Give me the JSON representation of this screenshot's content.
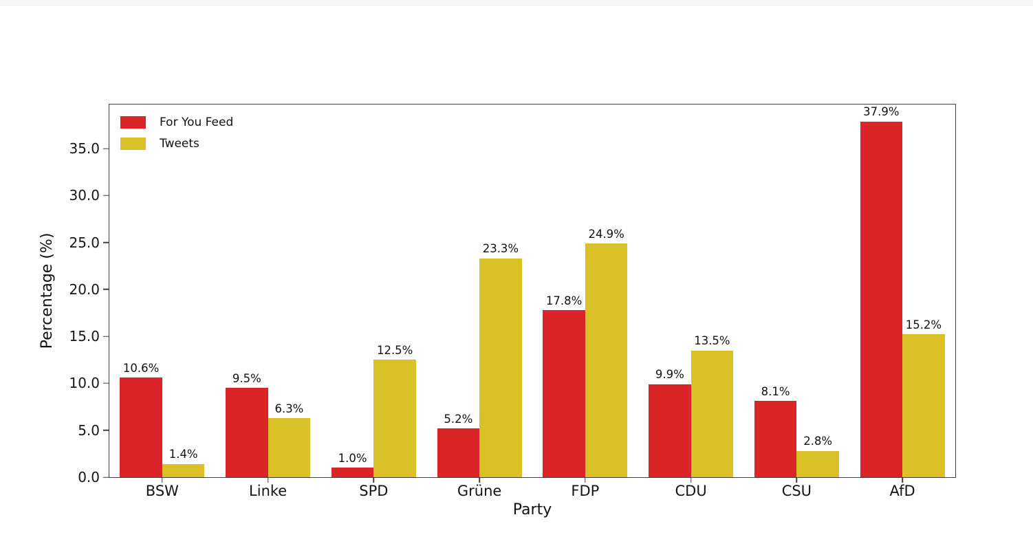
{
  "chart_data": {
    "type": "bar",
    "title": "",
    "xlabel": "Party",
    "ylabel": "Percentage (%)",
    "categories": [
      "BSW",
      "Linke",
      "SPD",
      "Grüne",
      "FDP",
      "CDU",
      "CSU",
      "AfD"
    ],
    "series": [
      {
        "name": "For You Feed",
        "color": "#db2428",
        "values": [
          10.6,
          9.5,
          1.0,
          5.2,
          17.8,
          9.9,
          8.1,
          37.9
        ],
        "labels": [
          "10.6%",
          "9.5%",
          "1.0%",
          "5.2%",
          "17.8%",
          "9.9%",
          "8.1%",
          "37.9%"
        ]
      },
      {
        "name": "Tweets",
        "color": "#d9c127",
        "values": [
          1.4,
          6.3,
          12.5,
          23.3,
          24.9,
          13.5,
          2.8,
          15.2
        ],
        "labels": [
          "1.4%",
          "6.3%",
          "12.5%",
          "23.3%",
          "24.9%",
          "13.5%",
          "2.8%",
          "15.2%"
        ]
      }
    ],
    "y_ticks": [
      0.0,
      5.0,
      10.0,
      15.0,
      20.0,
      25.0,
      30.0,
      35.0
    ],
    "y_tick_labels": [
      "0.0",
      "5.0",
      "10.0",
      "15.0",
      "20.0",
      "25.0",
      "30.0",
      "35.0"
    ],
    "ylim": [
      0,
      39.7
    ],
    "grid": false,
    "legend_position": "upper-left",
    "frame": "full-box"
  }
}
